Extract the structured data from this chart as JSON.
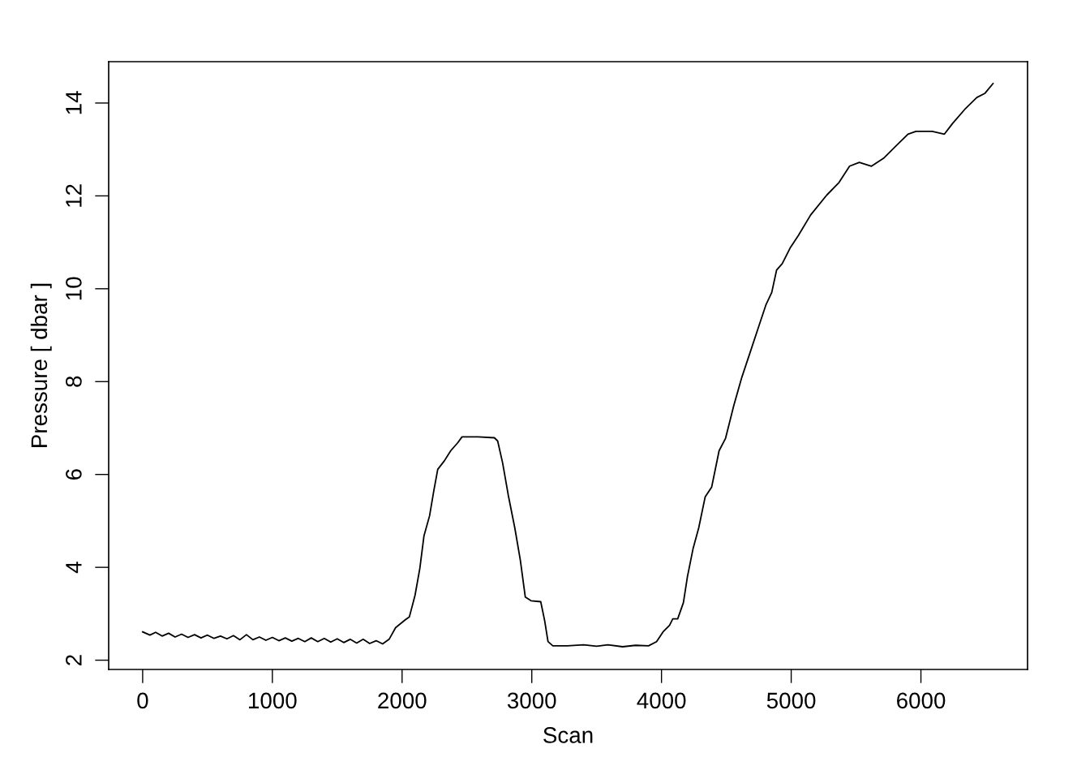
{
  "chart_data": {
    "type": "line",
    "xlabel": "Scan",
    "ylabel": "Pressure [ dbar ]",
    "xlim": [
      -262,
      6822
    ],
    "ylim": [
      1.8,
      14.89
    ],
    "xticks": [
      0,
      1000,
      2000,
      3000,
      4000,
      5000,
      6000
    ],
    "yticks": [
      2,
      4,
      6,
      8,
      10,
      12,
      14
    ],
    "grid": false,
    "line_style": "solid",
    "marker": "none",
    "series": [
      {
        "color": "#000000",
        "x": [
          0,
          56,
          100,
          150,
          200,
          250,
          300,
          350,
          400,
          450,
          500,
          550,
          600,
          650,
          700,
          750,
          800,
          850,
          900,
          950,
          1000,
          1050,
          1100,
          1150,
          1200,
          1250,
          1300,
          1350,
          1400,
          1450,
          1500,
          1550,
          1600,
          1650,
          1700,
          1750,
          1800,
          1850,
          1900,
          1950,
          2025,
          2056,
          2100,
          2137,
          2169,
          2212,
          2244,
          2275,
          2325,
          2375,
          2431,
          2462,
          2587,
          2712,
          2737,
          2775,
          2819,
          2869,
          2912,
          2950,
          2994,
          3069,
          3100,
          3125,
          3162,
          3275,
          3400,
          3500,
          3587,
          3700,
          3800,
          3900,
          3962,
          4012,
          4062,
          4087,
          4125,
          4169,
          4200,
          4244,
          4287,
          4337,
          4387,
          4444,
          4494,
          4556,
          4619,
          4681,
          4744,
          4806,
          4850,
          4887,
          4931,
          4994,
          5056,
          5150,
          5275,
          5369,
          5450,
          5525,
          5619,
          5712,
          5806,
          5900,
          5962,
          6087,
          6181,
          6244,
          6337,
          6431,
          6494,
          6556
        ],
        "values": [
          2.61,
          2.54,
          2.6,
          2.52,
          2.58,
          2.5,
          2.56,
          2.49,
          2.55,
          2.48,
          2.54,
          2.47,
          2.52,
          2.46,
          2.53,
          2.44,
          2.55,
          2.44,
          2.5,
          2.43,
          2.49,
          2.42,
          2.48,
          2.41,
          2.47,
          2.4,
          2.48,
          2.4,
          2.47,
          2.39,
          2.46,
          2.38,
          2.45,
          2.37,
          2.45,
          2.36,
          2.42,
          2.35,
          2.45,
          2.7,
          2.87,
          2.93,
          3.4,
          3.98,
          4.68,
          5.11,
          5.64,
          6.11,
          6.29,
          6.51,
          6.69,
          6.81,
          6.81,
          6.79,
          6.72,
          6.25,
          5.55,
          4.85,
          4.15,
          3.36,
          3.28,
          3.26,
          2.84,
          2.4,
          2.31,
          2.31,
          2.33,
          2.3,
          2.33,
          2.29,
          2.32,
          2.31,
          2.4,
          2.61,
          2.75,
          2.89,
          2.89,
          3.24,
          3.8,
          4.41,
          4.85,
          5.52,
          5.73,
          6.51,
          6.78,
          7.47,
          8.09,
          8.61,
          9.14,
          9.66,
          9.92,
          10.4,
          10.54,
          10.89,
          11.15,
          11.59,
          12.02,
          12.29,
          12.64,
          12.72,
          12.64,
          12.81,
          13.07,
          13.33,
          13.39,
          13.39,
          13.33,
          13.56,
          13.86,
          14.12,
          14.21,
          14.42
        ]
      }
    ]
  }
}
